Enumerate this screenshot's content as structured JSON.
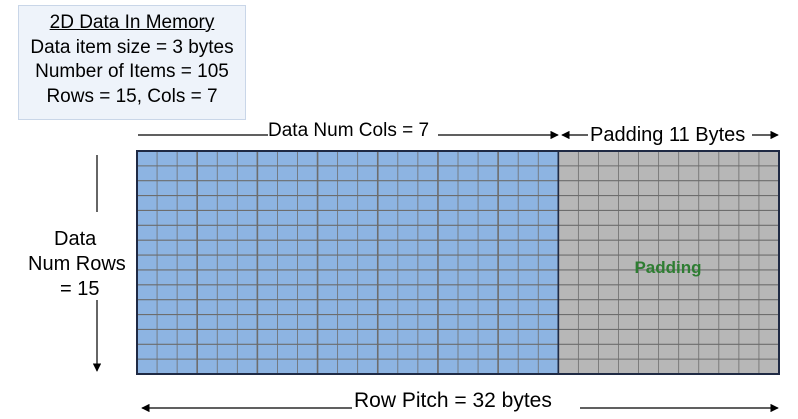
{
  "info": {
    "title": "2D Data In Memory",
    "line1": "Data item size = 3 bytes",
    "line2": "Number of Items = 105",
    "line3": "Rows = 15, Cols = 7"
  },
  "labels": {
    "data_cols": "Data Num Cols = 7",
    "padding_bytes": "Padding 11 Bytes",
    "num_rows_line1": "Data",
    "num_rows_line2": "Num Rows",
    "num_rows_line3": "= 15",
    "row_pitch": "Row Pitch = 32 bytes",
    "padding_region": "Padding"
  },
  "grid": {
    "rows": 15,
    "data_cols": 7,
    "item_size_bytes": 3,
    "padding_bytes": 11,
    "row_pitch_bytes": 32
  },
  "colors": {
    "data_fill": "#8db4e2",
    "padding_fill": "#b7b7b7",
    "grid_line": "#6d6d6d",
    "outline": "#1f2a44",
    "padding_text": "#2e7d32"
  }
}
